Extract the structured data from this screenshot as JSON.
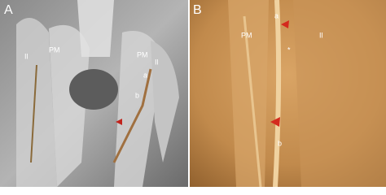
{
  "panels": [
    {
      "label": "A",
      "annotations": [
        "Il",
        "PM",
        "PM",
        "Il",
        "a",
        "b"
      ]
    },
    {
      "label": "B",
      "annotations": [
        "PM",
        "Il",
        "a",
        "*",
        "b"
      ]
    }
  ]
}
